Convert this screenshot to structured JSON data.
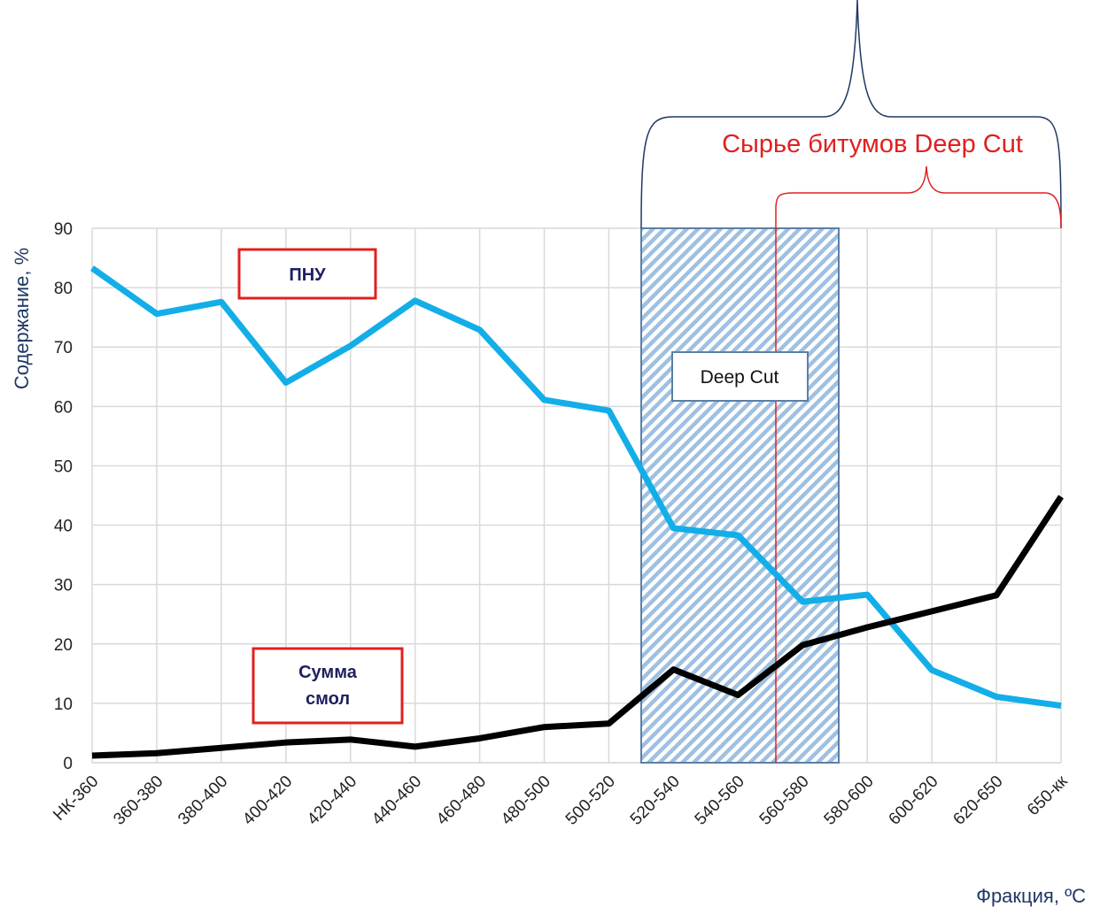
{
  "chart_data": {
    "type": "line",
    "categories": [
      "НК-360",
      "360-380",
      "380-400",
      "400-420",
      "420-440",
      "440-460",
      "460-480",
      "480-500",
      "500-520",
      "520-540",
      "540-560",
      "560-580",
      "580-600",
      "600-620",
      "620-650",
      "650-кк"
    ],
    "series": [
      {
        "name": "ПНУ",
        "color": "#13aee8",
        "values": [
          83.3,
          75.6,
          77.6,
          64,
          70.2,
          77.8,
          72.9,
          61.1,
          59.3,
          39.5,
          38.3,
          27.1,
          28.3,
          15.6,
          11.1,
          9.6
        ]
      },
      {
        "name": "Сумма смол",
        "color": "#000000",
        "values": [
          1.2,
          1.6,
          2.5,
          3.4,
          3.9,
          2.7,
          4.1,
          6,
          6.6,
          15.7,
          11.4,
          19.8,
          22.8,
          25.5,
          28.2,
          44.8
        ]
      }
    ],
    "ylim": [
      0,
      90
    ],
    "yticks": [
      0,
      10,
      20,
      30,
      40,
      50,
      60,
      70,
      80,
      90
    ],
    "grid": true,
    "ylabel": "Содержание, %",
    "xlabel": "Фракция, ºC",
    "annotations": [
      "Deep Cut",
      "Сырье битумов Deep Cut"
    ]
  }
}
